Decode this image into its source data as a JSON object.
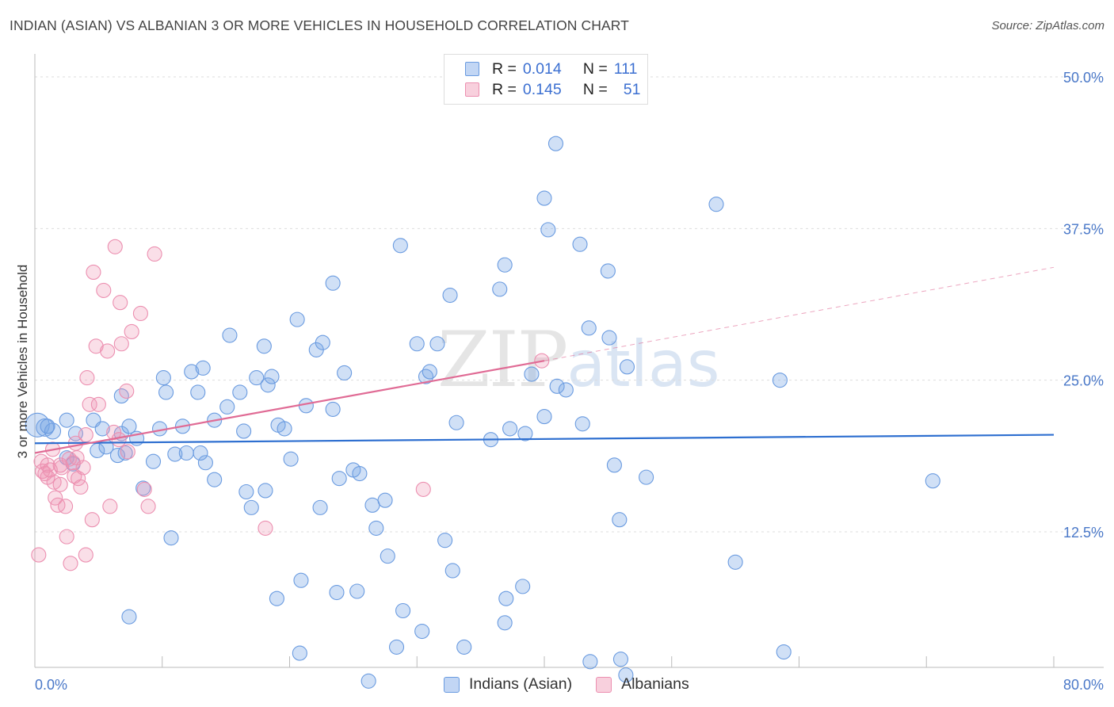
{
  "title": "INDIAN (ASIAN) VS ALBANIAN 3 OR MORE VEHICLES IN HOUSEHOLD CORRELATION CHART",
  "source": "Source: ZipAtlas.com",
  "watermark": {
    "zip": "ZIP",
    "atlas": "atlas"
  },
  "legend": {
    "rows": [
      {
        "r_label": "R = ",
        "r_value": "0.014",
        "n_label": "N = ",
        "n_value": "111"
      },
      {
        "r_label": "R = ",
        "r_value": "0.145",
        "n_label": "N = ",
        "n_value": "51"
      }
    ]
  },
  "bottom_legend": [
    "Indians (Asian)",
    "Albanians"
  ],
  "colors": {
    "blue_fill": "rgba(120,165,230,0.35)",
    "blue_stroke": "#6a9be0",
    "blue_line": "#2e6fd0",
    "pink_fill": "rgba(240,150,180,0.30)",
    "pink_stroke": "#ec8fb0",
    "pink_line": "#e06b95",
    "grid": "#dddddd",
    "axis_text": "#4a78c8"
  },
  "chart_data": {
    "type": "scatter",
    "title": "INDIAN (ASIAN) VS ALBANIAN 3 OR MORE VEHICLES IN HOUSEHOLD CORRELATION CHART",
    "xlabel": "",
    "ylabel": "3 or more Vehicles in Household",
    "xlim": [
      0,
      80
    ],
    "ylim": [
      0,
      52
    ],
    "x_tick_labels": [
      "0.0%",
      "80.0%"
    ],
    "y_ticks": [
      12.5,
      25.0,
      37.5,
      50.0
    ],
    "y_tick_labels": [
      "12.5%",
      "25.0%",
      "37.5%",
      "50.0%"
    ],
    "series": [
      {
        "name": "Indians (Asian)",
        "trend": {
          "x0": 0,
          "y0": 19.8,
          "x1": 80,
          "y1": 20.5
        },
        "points": [
          [
            0.2,
            21.3,
            14
          ],
          [
            0.8,
            21.1,
            10
          ],
          [
            1.4,
            20.8,
            9
          ],
          [
            1.0,
            21.2,
            8
          ],
          [
            2.5,
            21.7,
            8
          ],
          [
            3.2,
            20.6,
            8
          ],
          [
            4.6,
            21.7,
            8
          ],
          [
            5.3,
            21.0,
            8
          ],
          [
            6.8,
            20.6,
            8
          ],
          [
            7.4,
            21.2,
            8
          ],
          [
            9.8,
            21.0,
            8
          ],
          [
            11.6,
            21.2,
            8
          ],
          [
            2.5,
            18.6,
            8
          ],
          [
            3.0,
            18.1,
            8
          ],
          [
            4.9,
            19.2,
            8
          ],
          [
            5.6,
            19.5,
            8
          ],
          [
            6.5,
            18.8,
            8
          ],
          [
            7.1,
            19.0,
            8
          ],
          [
            8.0,
            20.2,
            8
          ],
          [
            9.3,
            18.3,
            8
          ],
          [
            11.0,
            18.9,
            8
          ],
          [
            11.9,
            19.0,
            8
          ],
          [
            13.4,
            18.2,
            8
          ],
          [
            13.0,
            19.0,
            8
          ],
          [
            6.8,
            23.7,
            8
          ],
          [
            10.1,
            25.2,
            8
          ],
          [
            10.3,
            24.0,
            8
          ],
          [
            12.3,
            25.7,
            8
          ],
          [
            12.8,
            24.0,
            8
          ],
          [
            13.2,
            26.0,
            8
          ],
          [
            14.1,
            21.7,
            8
          ],
          [
            15.1,
            22.8,
            8
          ],
          [
            16.1,
            24.0,
            8
          ],
          [
            16.4,
            20.8,
            8
          ],
          [
            17.4,
            25.2,
            8
          ],
          [
            18.3,
            24.6,
            8
          ],
          [
            18.6,
            25.3,
            8
          ],
          [
            18.0,
            27.8,
            8
          ],
          [
            15.3,
            28.7,
            8
          ],
          [
            19.1,
            21.3,
            8
          ],
          [
            19.6,
            21.0,
            8
          ],
          [
            20.1,
            18.5,
            8
          ],
          [
            20.6,
            30.0,
            8
          ],
          [
            21.3,
            22.9,
            8
          ],
          [
            22.1,
            27.5,
            8
          ],
          [
            22.6,
            28.1,
            8
          ],
          [
            23.4,
            22.6,
            8
          ],
          [
            24.3,
            25.6,
            8
          ],
          [
            23.4,
            33.0,
            8
          ],
          [
            23.9,
            16.9,
            8
          ],
          [
            25.0,
            17.6,
            8
          ],
          [
            25.5,
            17.3,
            8
          ],
          [
            26.5,
            14.7,
            8
          ],
          [
            26.8,
            12.8,
            8
          ],
          [
            27.5,
            15.1,
            8
          ],
          [
            27.7,
            10.5,
            8
          ],
          [
            30.0,
            28.0,
            8
          ],
          [
            30.7,
            25.3,
            8
          ],
          [
            31.0,
            25.7,
            8
          ],
          [
            31.6,
            28.0,
            8
          ],
          [
            32.2,
            11.8,
            8
          ],
          [
            33.1,
            21.5,
            8
          ],
          [
            32.6,
            32.0,
            8
          ],
          [
            32.8,
            9.3,
            8
          ],
          [
            33.7,
            3.0,
            8
          ],
          [
            35.8,
            20.1,
            8
          ],
          [
            36.5,
            32.5,
            8
          ],
          [
            36.9,
            34.5,
            8
          ],
          [
            37.3,
            21.0,
            8
          ],
          [
            38.5,
            20.6,
            8
          ],
          [
            39.0,
            25.5,
            8
          ],
          [
            40.0,
            40.0,
            8
          ],
          [
            40.3,
            37.4,
            8
          ],
          [
            40.9,
            44.5,
            8
          ],
          [
            41.0,
            24.5,
            8
          ],
          [
            41.7,
            24.2,
            8
          ],
          [
            42.8,
            36.2,
            8
          ],
          [
            43.0,
            21.4,
            8
          ],
          [
            43.5,
            29.3,
            8
          ],
          [
            45.1,
            28.5,
            8
          ],
          [
            45.5,
            18.0,
            8
          ],
          [
            45.9,
            13.5,
            8
          ],
          [
            46.5,
            26.1,
            8
          ],
          [
            37.0,
            7.0,
            8
          ],
          [
            36.9,
            5.0,
            8
          ],
          [
            38.3,
            8.0,
            8
          ],
          [
            28.7,
            36.1,
            8
          ],
          [
            28.9,
            6.0,
            8
          ],
          [
            30.4,
            4.3,
            8
          ],
          [
            28.4,
            3.0,
            8
          ],
          [
            20.8,
            2.5,
            8
          ],
          [
            20.9,
            8.5,
            8
          ],
          [
            19.0,
            7.0,
            8
          ],
          [
            18.1,
            15.9,
            8
          ],
          [
            16.6,
            15.8,
            8
          ],
          [
            17.0,
            14.5,
            8
          ],
          [
            22.4,
            14.5,
            8
          ],
          [
            25.3,
            7.6,
            8
          ],
          [
            23.7,
            7.5,
            8
          ],
          [
            14.1,
            16.8,
            8
          ],
          [
            10.7,
            12.0,
            8
          ],
          [
            8.5,
            16.1,
            8
          ],
          [
            7.4,
            5.5,
            8
          ],
          [
            26.2,
            0.2,
            8
          ],
          [
            46.4,
            0.7,
            8
          ],
          [
            43.6,
            1.8,
            8
          ],
          [
            46.0,
            2.0,
            8
          ],
          [
            58.8,
            2.6,
            8
          ],
          [
            53.5,
            39.5,
            8
          ],
          [
            58.5,
            25.0,
            8
          ],
          [
            70.5,
            16.7,
            8
          ],
          [
            45.0,
            34.0,
            8
          ],
          [
            55.0,
            10.0,
            8
          ],
          [
            40.0,
            22.0,
            8
          ],
          [
            48.0,
            17.0,
            8
          ]
        ]
      },
      {
        "name": "Albanians",
        "trend": {
          "x0": 0,
          "y0": 19.0,
          "x1": 40,
          "y1": 26.6,
          "dash_x1": 80,
          "dash_y1": 34.3
        },
        "points": [
          [
            0.5,
            18.3,
            8
          ],
          [
            0.6,
            17.5,
            8
          ],
          [
            0.8,
            17.3,
            8
          ],
          [
            1.0,
            18.0,
            8
          ],
          [
            1.2,
            17.6,
            8
          ],
          [
            1.5,
            16.6,
            8
          ],
          [
            1.6,
            15.3,
            8
          ],
          [
            1.8,
            14.7,
            8
          ],
          [
            2.0,
            16.4,
            8
          ],
          [
            2.1,
            17.8,
            8
          ],
          [
            2.4,
            14.6,
            8
          ],
          [
            2.5,
            12.1,
            8
          ],
          [
            2.7,
            18.5,
            8
          ],
          [
            2.8,
            9.9,
            8
          ],
          [
            3.0,
            18.2,
            8
          ],
          [
            3.1,
            17.1,
            8
          ],
          [
            3.3,
            18.6,
            8
          ],
          [
            3.4,
            16.9,
            8
          ],
          [
            3.6,
            16.2,
            8
          ],
          [
            3.8,
            17.8,
            8
          ],
          [
            4.0,
            10.6,
            8
          ],
          [
            4.1,
            25.2,
            8
          ],
          [
            4.3,
            23.0,
            8
          ],
          [
            4.5,
            13.5,
            8
          ],
          [
            4.6,
            33.9,
            8
          ],
          [
            4.8,
            27.8,
            8
          ],
          [
            5.0,
            23.0,
            8
          ],
          [
            5.4,
            32.4,
            8
          ],
          [
            5.7,
            27.4,
            8
          ],
          [
            5.9,
            14.6,
            8
          ],
          [
            6.2,
            20.7,
            8
          ],
          [
            6.3,
            36.0,
            8
          ],
          [
            6.6,
            20.1,
            8
          ],
          [
            6.7,
            31.4,
            8
          ],
          [
            6.8,
            28.0,
            8
          ],
          [
            7.2,
            24.1,
            8
          ],
          [
            7.3,
            19.1,
            8
          ],
          [
            7.6,
            29.0,
            8
          ],
          [
            8.3,
            30.5,
            8
          ],
          [
            8.6,
            16.0,
            8
          ],
          [
            8.9,
            14.6,
            8
          ],
          [
            9.4,
            35.4,
            8
          ],
          [
            0.3,
            10.6,
            8
          ],
          [
            1.4,
            19.3,
            8
          ],
          [
            3.2,
            19.8,
            8
          ],
          [
            18.1,
            12.8,
            8
          ],
          [
            30.5,
            16.0,
            8
          ],
          [
            39.8,
            26.6,
            8
          ],
          [
            2.0,
            18.0,
            8
          ],
          [
            1.0,
            17.0,
            8
          ],
          [
            4.0,
            20.5,
            8
          ]
        ]
      }
    ]
  }
}
